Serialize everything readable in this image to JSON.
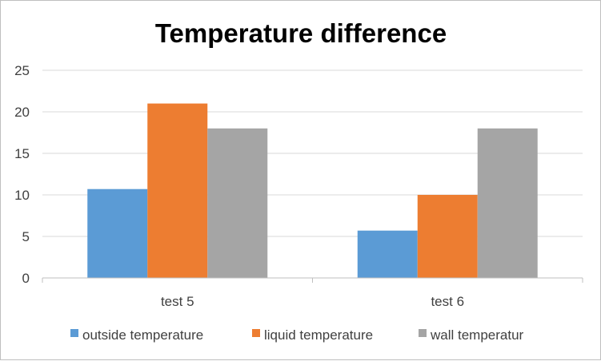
{
  "chart_data": {
    "type": "bar",
    "title": "Temperature difference",
    "xlabel": "",
    "ylabel": "",
    "ylim": [
      0,
      25
    ],
    "yticks": [
      0,
      5,
      10,
      15,
      20,
      25
    ],
    "grid": true,
    "legend_position": "bottom",
    "categories": [
      "test 5",
      "test 6"
    ],
    "series": [
      {
        "name": "outside temperature",
        "color": "#5b9bd5",
        "values": [
          10.7,
          5.7
        ]
      },
      {
        "name": "liquid temperature",
        "color": "#ed7d31",
        "values": [
          21,
          10
        ]
      },
      {
        "name": "wall temperatur",
        "color": "#a5a5a5",
        "values": [
          18,
          18
        ]
      }
    ]
  }
}
